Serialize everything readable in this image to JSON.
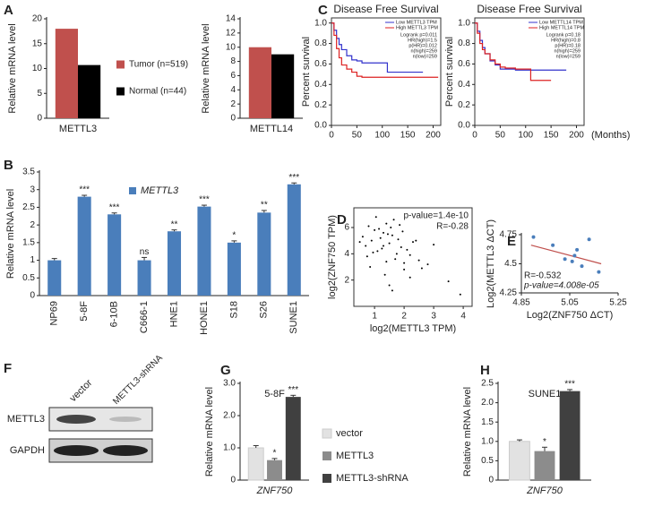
{
  "panel_labels": [
    "A",
    "B",
    "C",
    "D",
    "E",
    "F",
    "G",
    "H"
  ],
  "chart_data": [
    {
      "type": "bar",
      "y_label": "Relative mRNA level",
      "categories": [
        "METTL3"
      ],
      "ylim": [
        0,
        20
      ],
      "yticks": [
        0,
        5,
        10,
        15,
        20
      ],
      "series": [
        {
          "name": "Tumor (n=519)",
          "color": "#c0504d",
          "values": [
            18
          ]
        },
        {
          "name": "Normal (n=44)",
          "color": "#000000",
          "values": [
            10.7
          ]
        }
      ]
    },
    {
      "type": "bar",
      "y_label": "Relative mRNA level",
      "categories": [
        "METTL14"
      ],
      "ylim": [
        0,
        14
      ],
      "yticks": [
        0,
        2,
        4,
        6,
        8,
        10,
        12,
        14
      ],
      "series": [
        {
          "color": "#c0504d",
          "values": [
            10
          ]
        },
        {
          "color": "#000000",
          "values": [
            9
          ]
        }
      ]
    },
    {
      "type": "line",
      "step": true,
      "title": "Disease Free Survival",
      "y_label": "Percent survival",
      "x": [
        0,
        5,
        10,
        15,
        20,
        30,
        40,
        50,
        60,
        80,
        100,
        110,
        120,
        150,
        180,
        210
      ],
      "xlim": [
        0,
        215
      ],
      "xticks": [
        0,
        50,
        100,
        150,
        200
      ],
      "ylim": [
        0,
        1.05
      ],
      "yticks": [
        {
          "value": 0,
          "label": "0.0"
        },
        0.2,
        0.4,
        0.6,
        0.8,
        {
          "value": 1,
          "label": "1.0"
        }
      ],
      "series": [
        {
          "name": "Low METTL3 TPM",
          "color": "#3333cc",
          "values": [
            1,
            0.93,
            0.85,
            0.79,
            0.74,
            0.68,
            0.64,
            0.63,
            0.61,
            0.61,
            0.61,
            0.52,
            0.52,
            0.52,
            0.52,
            null
          ]
        },
        {
          "name": "High METTL3 TPM",
          "color": "#dd2222",
          "values": [
            1,
            0.88,
            0.75,
            0.66,
            0.59,
            0.55,
            0.52,
            0.48,
            0.47,
            0.47,
            0.47,
            0.47,
            0.47,
            0.47,
            0.47,
            0.47
          ]
        }
      ],
      "annotations": [
        "Logrank p=0.011",
        "HR(high)=1.5",
        "p(HR)=0.012",
        "n(high)=259",
        "n(low)=259"
      ]
    },
    {
      "type": "line",
      "step": true,
      "title": "Disease Free Survival",
      "y_label": "Percent survival",
      "x_label": "(Months)",
      "x": [
        0,
        5,
        10,
        15,
        20,
        30,
        40,
        50,
        60,
        80,
        100,
        110,
        120,
        150,
        180,
        210
      ],
      "xlim": [
        0,
        215
      ],
      "xticks": [
        0,
        50,
        100,
        150,
        200
      ],
      "ylim": [
        0,
        1.05
      ],
      "yticks": [
        {
          "value": 0,
          "label": "0.0"
        },
        0.2,
        0.4,
        0.6,
        0.8,
        {
          "value": 1,
          "label": "1.0"
        }
      ],
      "series": [
        {
          "name": "Low METTL14 TPM",
          "color": "#3333cc",
          "values": [
            1,
            0.92,
            0.83,
            0.76,
            0.7,
            0.63,
            0.59,
            0.55,
            0.55,
            0.54,
            0.54,
            0.54,
            0.54,
            0.54,
            0.54,
            null
          ]
        },
        {
          "name": "High METTL14 TPM",
          "color": "#dd2222",
          "values": [
            1,
            0.9,
            0.8,
            0.74,
            0.7,
            0.64,
            0.6,
            0.57,
            0.56,
            0.55,
            0.55,
            0.44,
            0.44,
            0.44,
            null,
            null
          ]
        }
      ],
      "annotations": [
        "Logrank p=0.18",
        "HR(high)=0.8",
        "p(HR)=0.18",
        "n(high)=259",
        "n(low)=259"
      ]
    },
    {
      "type": "bar",
      "y_label": "Relative mRNA level",
      "categories": [
        "NP69",
        "5-8F",
        "6-10B",
        "C666-1",
        "HNE1",
        "HONE1",
        "S18",
        "S26",
        "SUNE1"
      ],
      "ylim": [
        0,
        3.5
      ],
      "yticks": [
        0,
        0.5,
        1,
        1.5,
        2,
        2.5,
        3,
        3.5
      ],
      "series": [
        {
          "name": "METTL3",
          "color": "#4a7ebb",
          "values": [
            1.0,
            2.8,
            2.3,
            1.0,
            1.82,
            2.52,
            1.5,
            2.35,
            3.15
          ],
          "errors": [
            0.05,
            0.04,
            0.04,
            0.08,
            0.04,
            0.04,
            0.05,
            0.06,
            0.04
          ],
          "annotations": [
            null,
            "***",
            "***",
            "ns",
            "**",
            "***",
            "*",
            "**",
            "***"
          ]
        }
      ]
    },
    {
      "type": "scatter",
      "x_label": "log2(METTL3 TPM)",
      "y_label": "log2(ZNF750 TPM)",
      "xlim": [
        0.3,
        4.3
      ],
      "xticks": [
        1,
        2,
        3,
        4
      ],
      "ylim": [
        0,
        7.5
      ],
      "yticks": [
        2,
        4,
        6
      ],
      "color": "#000000",
      "x": [
        1.2,
        1.5,
        0.8,
        1.9,
        1.3,
        2.2,
        0.9,
        1.6,
        1.1,
        2.5,
        1.4,
        0.7,
        1.8,
        2.0,
        1.0,
        1.7,
        2.3,
        0.6,
        1.25,
        1.55,
        2.8,
        1.35,
        0.95,
        1.45,
        2.1,
        1.65,
        3.0,
        0.85,
        1.15,
        1.75,
        2.6,
        1.05,
        1.95,
        0.75,
        1.5,
        2.4,
        3.9,
        1.3,
        2.0,
        1.6,
        0.5,
        1.85,
        2.2,
        1.4,
        3.5
      ],
      "values": [
        5.2,
        4.8,
        6.1,
        4.5,
        5.6,
        3.9,
        5.0,
        5.4,
        4.2,
        3.5,
        6.3,
        4.6,
        5.1,
        2.8,
        5.8,
        3.6,
        4.9,
        5.3,
        4.4,
        6.0,
        3.2,
        2.4,
        4.1,
        5.5,
        4.3,
        6.6,
        4.7,
        3.0,
        5.9,
        4.0,
        2.9,
        6.8,
        5.7,
        3.8,
        1.6,
        5.0,
        0.9,
        4.6,
        3.3,
        1.2,
        4.9,
        6.2,
        2.2,
        3.4,
        1.9
      ],
      "annotations": [
        "p-value=1.4e-10",
        "R=-0.28"
      ]
    },
    {
      "type": "scatter",
      "x_label": "Log2(ZNF750 ΔCT)",
      "y_label": "Log2(METTL3 ΔCT)",
      "xlim": [
        4.85,
        5.25
      ],
      "xticks": [
        4.85,
        5.05,
        5.25
      ],
      "ylim": [
        4.25,
        4.75
      ],
      "yticks": [
        4.25,
        4.5,
        4.75
      ],
      "color": "#4a7ebb",
      "x": [
        4.9,
        4.98,
        5.03,
        5.06,
        5.07,
        5.08,
        5.1,
        5.13,
        5.17
      ],
      "values": [
        4.73,
        4.66,
        4.54,
        4.52,
        4.57,
        4.62,
        4.48,
        4.71,
        4.43
      ],
      "trendline": {
        "color": "#c0504d",
        "x": [
          4.89,
          5.18
        ],
        "values": [
          4.66,
          4.5
        ]
      },
      "annotations": [
        "R=-0.532",
        "p-value=4.008e-05"
      ]
    },
    {
      "type": "bar",
      "title": "5-8F",
      "y_label": "Relative mRNA level",
      "categories": [
        "ZNF750"
      ],
      "ylim": [
        0,
        3
      ],
      "yticks": [
        0,
        {
          "value": 1,
          "label": "1.0"
        },
        {
          "value": 2,
          "label": "2.0"
        },
        {
          "value": 3,
          "label": "3.0"
        }
      ],
      "series": [
        {
          "name": "vector",
          "color": "#e2e2e2",
          "values": [
            1.0
          ],
          "errors": [
            0.07
          ],
          "annotations": [
            null
          ]
        },
        {
          "name": "METTL3",
          "color": "#8c8c8c",
          "values": [
            0.62
          ],
          "errors": [
            0.05
          ],
          "annotations": [
            "*"
          ]
        },
        {
          "name": "METTL3-shRNA",
          "color": "#404040",
          "values": [
            2.58
          ],
          "errors": [
            0.05
          ],
          "annotations": [
            "***"
          ]
        }
      ]
    },
    {
      "type": "bar",
      "title": "SUNE1",
      "y_label": "Relative mRNA level",
      "categories": [
        "ZNF750"
      ],
      "ylim": [
        0,
        2.5
      ],
      "yticks": [
        0,
        {
          "value": 0.5,
          "label": "0.5"
        },
        {
          "value": 1,
          "label": "1.0"
        },
        {
          "value": 1.5,
          "label": "1.5"
        },
        {
          "value": 2,
          "label": "2.0"
        },
        {
          "value": 2.5,
          "label": "2.5"
        }
      ],
      "series": [
        {
          "color": "#e2e2e2",
          "values": [
            1.0
          ],
          "errors": [
            0.04
          ],
          "annotations": [
            null
          ]
        },
        {
          "color": "#8c8c8c",
          "values": [
            0.75
          ],
          "errors": [
            0.1
          ],
          "annotations": [
            "*"
          ]
        },
        {
          "color": "#404040",
          "values": [
            2.3
          ],
          "errors": [
            0.04
          ],
          "annotations": [
            "***"
          ]
        }
      ]
    }
  ],
  "blot": {
    "lanes": [
      "vector",
      "METTL3-shRNA"
    ],
    "rows": [
      "METTL3",
      "GAPDH"
    ]
  }
}
